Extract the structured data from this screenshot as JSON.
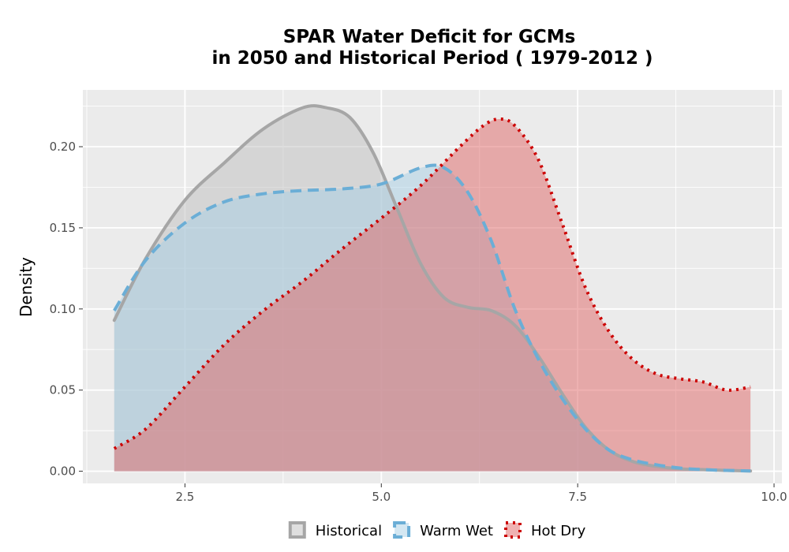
{
  "chart_data": {
    "type": "area",
    "title_lines": [
      "SPAR  Water Deficit for GCMs",
      "in 2050 and Historical Period ( 1979-2012 )"
    ],
    "xlabel": "",
    "ylabel": "Density",
    "xlim": [
      1.2,
      10.1
    ],
    "ylim": [
      -0.0075,
      0.235
    ],
    "x_ticks": [
      2.5,
      5.0,
      7.5,
      10.0
    ],
    "x_tick_labels": [
      "2.5",
      "5.0",
      "7.5",
      "10.0"
    ],
    "y_ticks": [
      0.0,
      0.05,
      0.1,
      0.15,
      0.2
    ],
    "y_tick_labels": [
      "0.00",
      "0.05",
      "0.10",
      "0.15",
      "0.20"
    ],
    "grid": true,
    "legend_position": "bottom",
    "series": [
      {
        "name": "Historical",
        "color": "#a6a6a6",
        "fill": "#bfbfbf",
        "line_style": "solid",
        "x": [
          1.6,
          2.0,
          2.5,
          3.0,
          3.5,
          4.0,
          4.3,
          4.6,
          4.9,
          5.2,
          5.5,
          5.8,
          6.1,
          6.4,
          6.7,
          7.0,
          7.3,
          7.6,
          7.9,
          8.2,
          8.5,
          8.8,
          9.1,
          9.4,
          9.7
        ],
        "y": [
          0.093,
          0.131,
          0.167,
          0.19,
          0.211,
          0.224,
          0.224,
          0.218,
          0.196,
          0.162,
          0.128,
          0.107,
          0.101,
          0.099,
          0.09,
          0.071,
          0.048,
          0.027,
          0.013,
          0.006,
          0.003,
          0.0015,
          0.001,
          0.0005,
          0.0002
        ]
      },
      {
        "name": "Warm Wet",
        "color": "#6baed6",
        "fill": "#a8cfe6",
        "line_style": "dashed",
        "x": [
          1.6,
          2.0,
          2.5,
          3.0,
          3.5,
          4.0,
          4.5,
          5.0,
          5.5,
          5.8,
          6.1,
          6.4,
          6.7,
          7.0,
          7.3,
          7.6,
          7.9,
          8.2,
          8.5,
          8.8,
          9.1,
          9.4,
          9.7
        ],
        "y": [
          0.099,
          0.13,
          0.153,
          0.166,
          0.171,
          0.173,
          0.174,
          0.177,
          0.187,
          0.187,
          0.172,
          0.142,
          0.1,
          0.069,
          0.045,
          0.026,
          0.013,
          0.007,
          0.004,
          0.002,
          0.001,
          0.0005,
          0.0002
        ]
      },
      {
        "name": "Hot Dry",
        "color": "#cc0000",
        "fill": "#e06666",
        "line_style": "dotted",
        "x": [
          1.6,
          2.0,
          2.5,
          3.0,
          3.5,
          4.0,
          4.5,
          5.0,
          5.5,
          6.0,
          6.3,
          6.5,
          6.7,
          7.0,
          7.3,
          7.6,
          7.9,
          8.2,
          8.5,
          8.8,
          9.1,
          9.4,
          9.7
        ],
        "y": [
          0.014,
          0.026,
          0.052,
          0.078,
          0.099,
          0.117,
          0.137,
          0.156,
          0.176,
          0.2,
          0.213,
          0.217,
          0.213,
          0.192,
          0.153,
          0.113,
          0.086,
          0.069,
          0.06,
          0.057,
          0.055,
          0.05,
          0.052
        ]
      }
    ]
  }
}
